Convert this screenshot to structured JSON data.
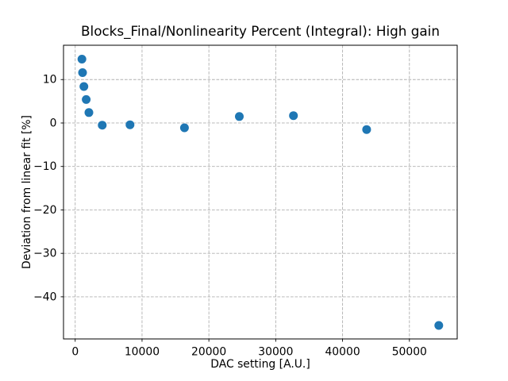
{
  "figure": {
    "background_color": "#ffffff"
  },
  "chart_data": {
    "type": "scatter",
    "title": "Blocks_Final/Nonlinearity Percent (Integral): High gain",
    "xlabel": "DAC setting [A.U.]",
    "ylabel": "Deviation from linear fit [%]",
    "x": [
      1000,
      1100,
      1300,
      1650,
      2050,
      4050,
      8200,
      16350,
      24550,
      32650,
      43600,
      54400
    ],
    "y": [
      14.7,
      11.6,
      8.4,
      5.4,
      2.4,
      -0.5,
      -0.4,
      -1.1,
      1.5,
      1.7,
      -1.5,
      -46.6
    ],
    "xlim": [
      -1750,
      57150
    ],
    "ylim": [
      -49.7,
      17.9
    ],
    "xticks": [
      0,
      10000,
      20000,
      30000,
      40000,
      50000
    ],
    "yticks": [
      10,
      0,
      -10,
      -20,
      -30,
      -40
    ],
    "grid": true,
    "grid_linestyle": "dashed",
    "legend": "none",
    "colors": {
      "marker": "#1f77b4",
      "grid": "#b0b0b0",
      "spine": "#000000",
      "text": "#000000",
      "background": "#ffffff"
    },
    "marker_diameter_px": 11
  }
}
